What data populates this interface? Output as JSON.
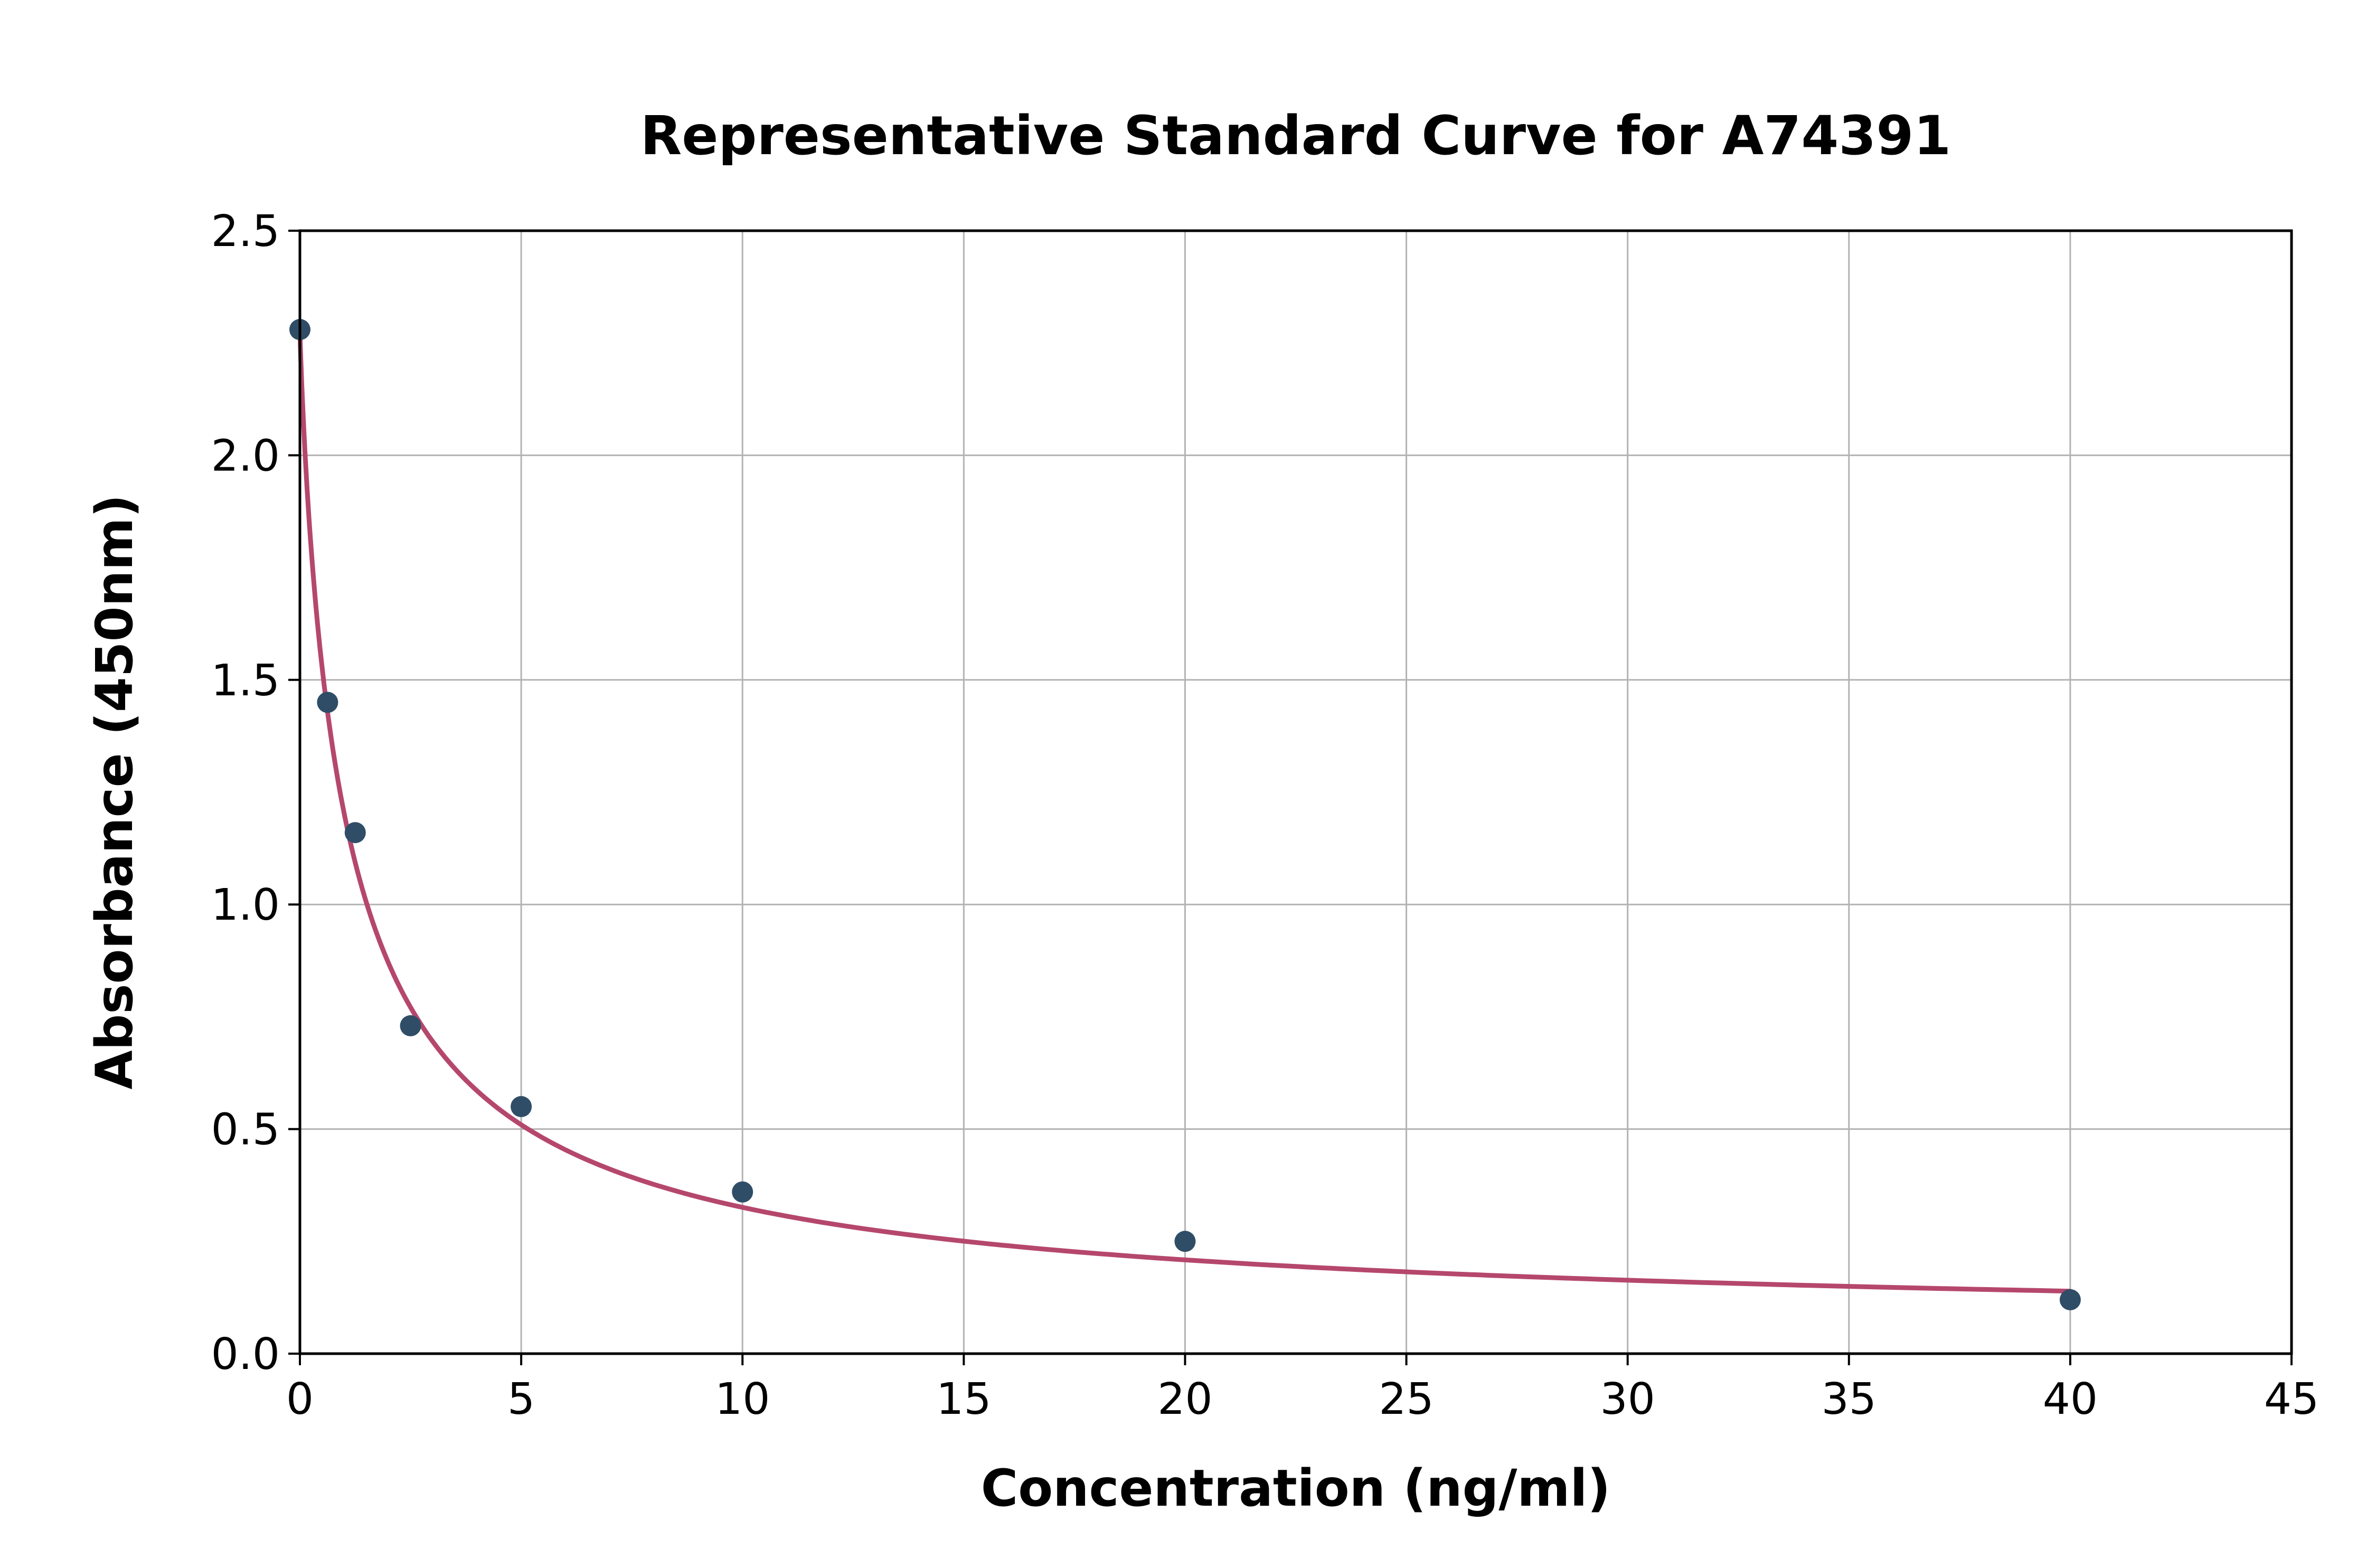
{
  "chart_data": {
    "type": "scatter",
    "title": "Representative Standard Curve for A74391",
    "xlabel": "Concentration (ng/ml)",
    "ylabel": "Absorbance (450nm)",
    "xlim": [
      0,
      45
    ],
    "ylim": [
      0,
      2.5
    ],
    "x_ticks": [
      0,
      5,
      10,
      15,
      20,
      25,
      30,
      35,
      40,
      45
    ],
    "x_tick_labels": [
      "0",
      "5",
      "10",
      "15",
      "20",
      "25",
      "30",
      "35",
      "40",
      "45"
    ],
    "y_ticks": [
      0,
      0.5,
      1.0,
      1.5,
      2.0,
      2.5
    ],
    "y_tick_labels": [
      "0.0",
      "0.5",
      "1.0",
      "1.5",
      "2.0",
      "2.5"
    ],
    "grid": true,
    "legend": "none",
    "points": [
      {
        "x": 0,
        "y": 2.28
      },
      {
        "x": 0.625,
        "y": 1.45
      },
      {
        "x": 1.25,
        "y": 1.16
      },
      {
        "x": 2.5,
        "y": 0.73
      },
      {
        "x": 5,
        "y": 0.55
      },
      {
        "x": 10,
        "y": 0.36
      },
      {
        "x": 20,
        "y": 0.25
      },
      {
        "x": 40,
        "y": 0.12
      }
    ],
    "fit_curve": {
      "model": "4PL",
      "a": 2.28,
      "b": 0.88,
      "c": 1.08,
      "d": 0.05,
      "x_start": 0,
      "x_end": 40
    },
    "colors": {
      "point": "#2f4d66",
      "curve": "#b5476d",
      "grid": "#b3b3b3",
      "axis": "#000000",
      "text": "#000000",
      "background": "#ffffff"
    }
  }
}
